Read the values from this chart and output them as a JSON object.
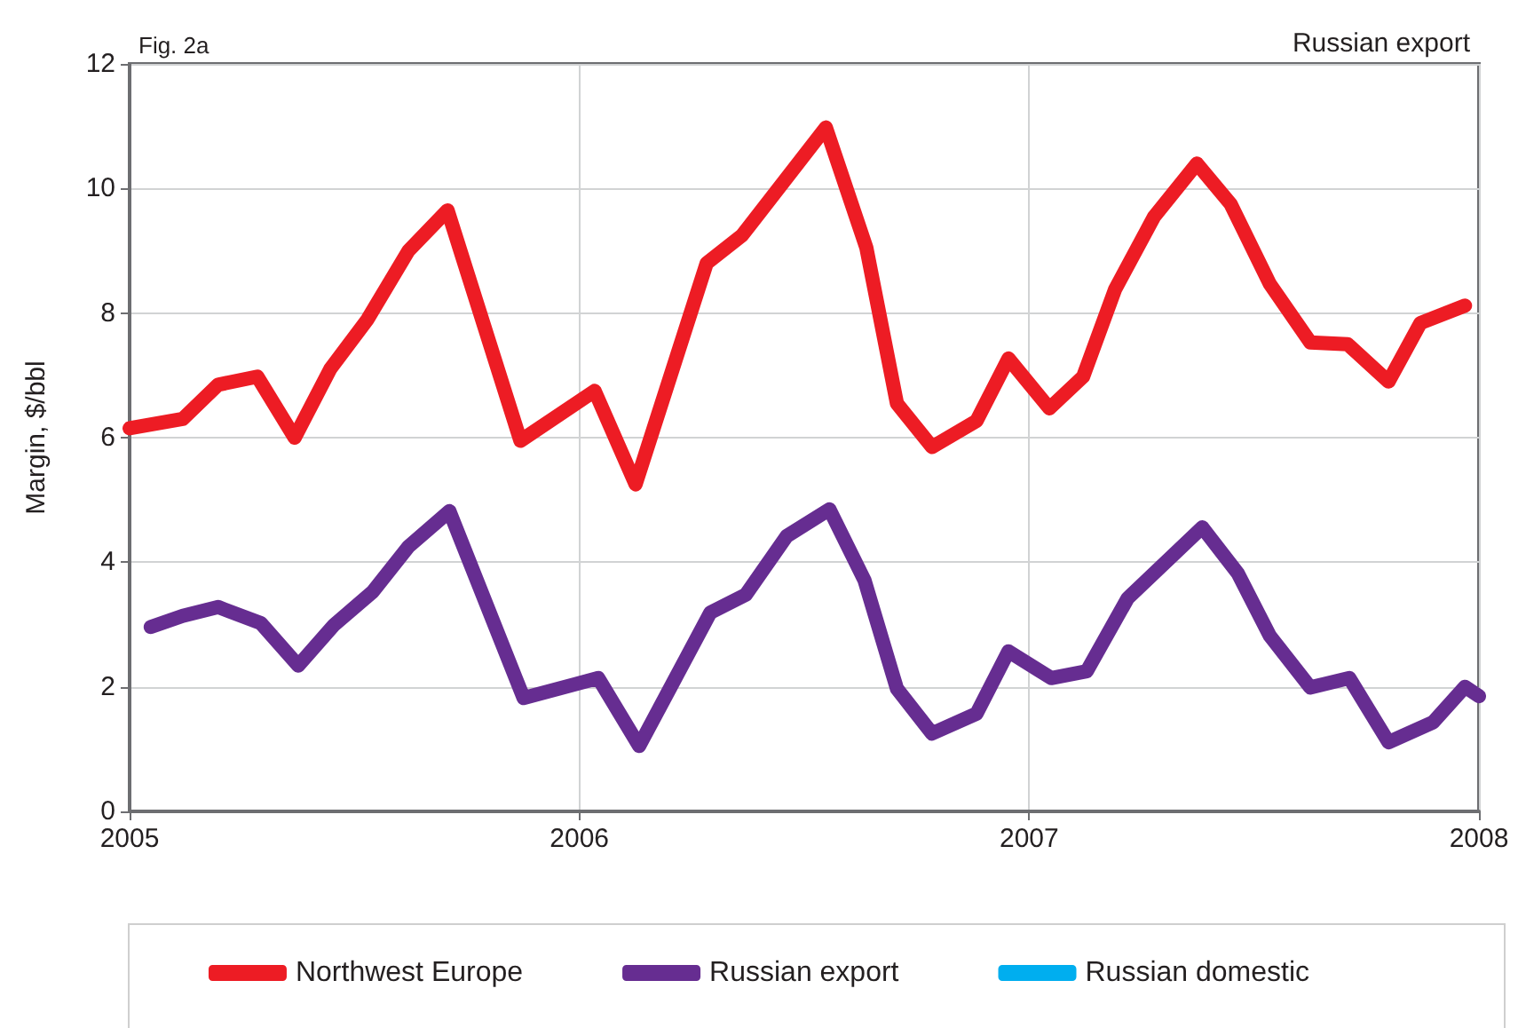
{
  "chart_data": {
    "type": "line",
    "title": "Fig. 2a",
    "subtitle": "Russian export",
    "ylabel": "Margin, $/bbl",
    "xlim": [
      2005,
      2008
    ],
    "xticks": [
      2005,
      2006,
      2007,
      2008
    ],
    "ylim": [
      0,
      12
    ],
    "yticks": [
      0,
      2,
      4,
      6,
      8,
      10,
      12
    ],
    "grid": true,
    "legend": "bottom",
    "line_style": "solid",
    "series": [
      {
        "name": "Northwest Europe",
        "color": "#ed1c24",
        "x": [
          2005.0,
          2005.118,
          2005.197,
          2005.284,
          2005.367,
          2005.446,
          2005.529,
          2005.62,
          2005.707,
          2005.869,
          2006.034,
          2006.125,
          2006.283,
          2006.362,
          2006.548,
          2006.638,
          2006.706,
          2006.784,
          2006.883,
          2006.954,
          2007.045,
          2007.12,
          2007.191,
          2007.278,
          2007.373,
          2007.448,
          2007.535,
          2007.625,
          2007.708,
          2007.799,
          2007.87,
          2007.969
        ],
        "values": [
          6.15,
          6.3,
          6.85,
          6.98,
          6.0,
          7.1,
          7.9,
          9.0,
          9.65,
          5.95,
          6.75,
          5.25,
          8.8,
          9.25,
          10.98,
          9.05,
          6.55,
          5.85,
          6.27,
          7.27,
          6.47,
          6.98,
          8.38,
          9.55,
          10.4,
          9.75,
          8.47,
          7.53,
          7.5,
          6.9,
          7.84,
          8.12
        ]
      },
      {
        "name": "Russian export",
        "color": "#662d91",
        "x": [
          2005.047,
          2005.118,
          2005.197,
          2005.292,
          2005.375,
          2005.454,
          2005.541,
          2005.62,
          2005.711,
          2005.876,
          2006.042,
          2006.133,
          2006.291,
          2006.37,
          2006.461,
          2006.556,
          2006.634,
          2006.706,
          2006.784,
          2006.883,
          2006.954,
          2007.049,
          2007.128,
          2007.219,
          2007.385,
          2007.464,
          2007.535,
          2007.625,
          2007.712,
          2007.799,
          2007.898,
          2007.969,
          2008.0
        ],
        "values": [
          2.96,
          3.14,
          3.28,
          3.02,
          2.34,
          2.99,
          3.53,
          4.25,
          4.82,
          1.82,
          2.14,
          1.05,
          3.19,
          3.48,
          4.42,
          4.85,
          3.71,
          1.97,
          1.25,
          1.57,
          2.57,
          2.14,
          2.25,
          3.42,
          4.56,
          3.82,
          2.82,
          1.99,
          2.14,
          1.11,
          1.43,
          2.0,
          1.85
        ]
      },
      {
        "name": "Russian domestic",
        "color": "#00aeef"
      }
    ]
  }
}
